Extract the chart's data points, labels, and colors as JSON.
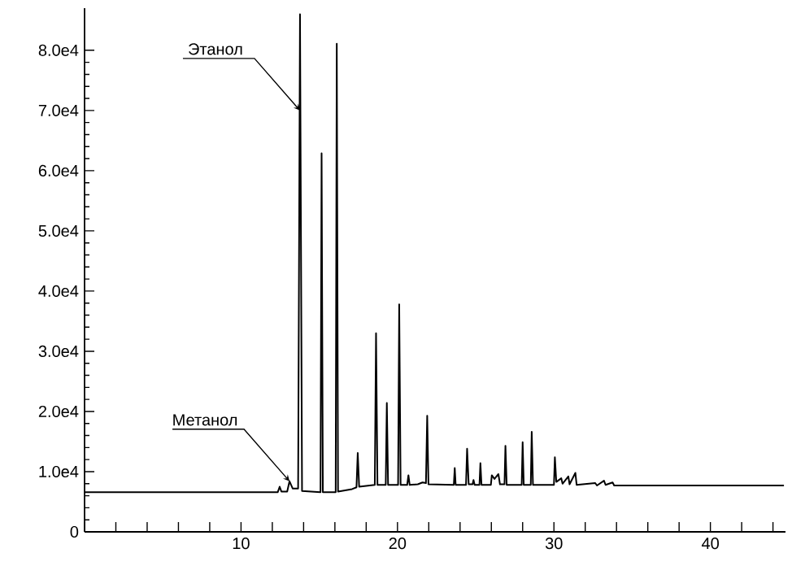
{
  "chart_data": {
    "type": "line",
    "color": "#000000",
    "x": [
      0,
      12.35,
      12.47,
      12.58,
      12.95,
      13.1,
      13.3,
      13.65,
      13.77,
      13.9,
      15.08,
      15.15,
      15.23,
      16.05,
      16.12,
      16.2,
      17.1,
      17.38,
      17.46,
      17.55,
      18.55,
      18.63,
      18.72,
      19.25,
      19.32,
      19.4,
      20.04,
      20.11,
      20.2,
      20.62,
      20.7,
      20.78,
      21.3,
      21.6,
      21.82,
      21.9,
      21.98,
      23.6,
      23.66,
      23.72,
      24.38,
      24.45,
      24.55,
      24.8,
      24.86,
      24.93,
      25.24,
      25.3,
      25.37,
      25.97,
      26.03,
      26.2,
      26.45,
      26.55,
      26.84,
      26.9,
      26.98,
      27.94,
      28.0,
      28.07,
      28.52,
      28.58,
      28.66,
      29.5,
      30.0,
      30.06,
      30.15,
      30.47,
      30.55,
      30.92,
      31.0,
      31.37,
      31.45,
      32.64,
      32.75,
      33.2,
      33.3,
      33.75,
      33.85,
      44.7
    ],
    "values": [
      6600,
      6600,
      7500,
      6700,
      6700,
      8400,
      7200,
      7200,
      86000,
      6800,
      6600,
      62900,
      6600,
      6600,
      81100,
      6700,
      7100,
      7400,
      13100,
      7500,
      7800,
      33000,
      7800,
      7800,
      21400,
      7800,
      7800,
      37800,
      7800,
      7800,
      9400,
      7800,
      7900,
      8200,
      8100,
      19300,
      7900,
      7800,
      10600,
      7800,
      7800,
      13800,
      7900,
      7900,
      8600,
      7800,
      7800,
      11400,
      7800,
      7800,
      9400,
      8800,
      9600,
      7900,
      7900,
      14300,
      7800,
      7800,
      14900,
      7800,
      7800,
      16600,
      7800,
      7800,
      7800,
      12400,
      8300,
      8900,
      8000,
      9200,
      7900,
      9800,
      7800,
      8100,
      7700,
      8500,
      7800,
      8200,
      7700,
      7700
    ],
    "xlim": [
      0,
      44.8
    ],
    "xticks": [
      {
        "value": 0,
        "label": null
      },
      {
        "value": 2,
        "label": null
      },
      {
        "value": 4,
        "label": null
      },
      {
        "value": 6,
        "label": null
      },
      {
        "value": 8,
        "label": null
      },
      10,
      {
        "value": 12,
        "label": null
      },
      {
        "value": 14,
        "label": null
      },
      {
        "value": 16,
        "label": null
      },
      {
        "value": 18,
        "label": null
      },
      20,
      {
        "value": 22,
        "label": null
      },
      {
        "value": 24,
        "label": null
      },
      {
        "value": 26,
        "label": null
      },
      {
        "value": 28,
        "label": null
      },
      30,
      {
        "value": 32,
        "label": null
      },
      {
        "value": 34,
        "label": null
      },
      {
        "value": 36,
        "label": null
      },
      {
        "value": 38,
        "label": null
      },
      40,
      {
        "value": 42,
        "label": null
      },
      {
        "value": 44,
        "label": null
      }
    ],
    "ylim": [
      0,
      87000
    ],
    "yticks": [
      0,
      {
        "value": 10000,
        "label": "1.0e4"
      },
      {
        "value": 20000,
        "label": "2.0e4"
      },
      {
        "value": 30000,
        "label": "3.0e4"
      },
      {
        "value": 40000,
        "label": "4.0e4"
      },
      {
        "value": 50000,
        "label": "5.0e4"
      },
      {
        "value": 60000,
        "label": "6.0e4"
      },
      {
        "value": 70000,
        "label": "7.0e4"
      },
      {
        "value": 80000,
        "label": "8.0e4"
      }
    ],
    "grid": false,
    "marker": "none",
    "line_style": "solid",
    "annotations": [
      {
        "text": "Этанол",
        "x": 13.77,
        "y": 70000
      },
      {
        "text": "Метанол",
        "x": 13.1,
        "y": 8400
      }
    ]
  }
}
